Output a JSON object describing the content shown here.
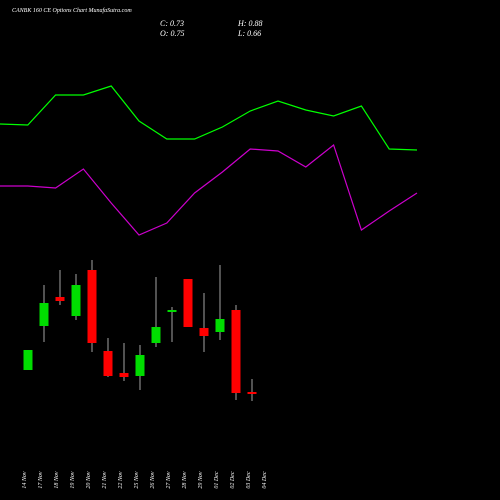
{
  "chart_data": {
    "type": "candlestick",
    "title": "CANBK 160 CE Options Chart MunafaSutra.com",
    "ohlc_texts": [
      "C: 0.73",
      "H: 0.88",
      "O: 0.75",
      "L: 0.66"
    ],
    "categories": [
      "14 Nov",
      "17 Nov",
      "18 Nov",
      "19 Nov",
      "20 Nov",
      "21 Nov",
      "22 Nov",
      "25 Nov",
      "26 Nov",
      "27 Nov",
      "28 Nov",
      "29 Nov",
      "01 Dec",
      "02 Dec",
      "03 Dec",
      "04 Dec"
    ],
    "open": [
      0.97,
      1.41,
      1.7,
      1.51,
      1.97,
      1.16,
      0.94,
      0.91,
      1.24,
      1.55,
      1.88,
      1.39,
      1.35,
      1.57,
      0.75,
      null
    ],
    "high": [
      1.17,
      1.82,
      1.97,
      1.93,
      2.07,
      1.29,
      1.24,
      1.22,
      1.9,
      1.6,
      1.88,
      1.74,
      2.02,
      1.62,
      0.88,
      null
    ],
    "low": [
      0.97,
      1.25,
      1.62,
      1.47,
      1.15,
      0.9,
      0.86,
      0.77,
      1.2,
      1.25,
      1.4,
      1.15,
      1.27,
      0.67,
      0.66,
      null
    ],
    "close": [
      1.17,
      1.64,
      1.66,
      1.82,
      1.24,
      0.91,
      0.9,
      1.12,
      1.4,
      1.57,
      1.4,
      1.31,
      1.48,
      0.74,
      0.73,
      null
    ],
    "up_color": "#00dd00",
    "down_color": "#ff0000",
    "lines": [
      {
        "color": "#00ff00",
        "values": [
          3.43,
          3.42,
          3.72,
          3.72,
          3.81,
          3.46,
          3.28,
          3.28,
          3.4,
          3.56,
          3.66,
          3.57,
          3.51,
          3.61,
          3.18,
          3.17
        ]
      },
      {
        "color": "#cc00cc",
        "values": [
          2.81,
          2.81,
          2.79,
          2.98,
          2.64,
          2.32,
          2.44,
          2.74,
          2.95,
          3.18,
          3.16,
          3.0,
          3.22,
          2.37,
          2.56,
          2.74
        ]
      }
    ],
    "ylim": [
      -0.33,
      4.67
    ]
  }
}
